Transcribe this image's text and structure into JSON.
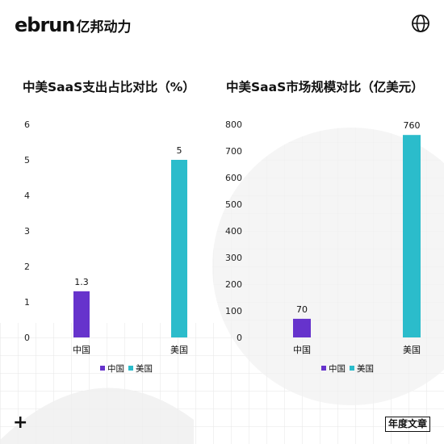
{
  "brand": {
    "logo_en": "ebrun",
    "logo_cn": "亿邦动力"
  },
  "footer": {
    "plus_symbol": "+",
    "tag_label": "年度文章"
  },
  "colors": {
    "china": "#6633CC",
    "usa": "#2BBCCB"
  },
  "chart_data": [
    {
      "type": "bar",
      "title": "中美SaaS支出占比对比（%）",
      "categories": [
        "中国",
        "美国"
      ],
      "values": [
        1.3,
        5
      ],
      "data_labels": [
        "1.3",
        "5"
      ],
      "legend": [
        "中国",
        "美国"
      ],
      "legend_position": "bottom",
      "ylim": [
        0,
        6
      ],
      "yticks": [
        0,
        1,
        2,
        3,
        4,
        5,
        6
      ],
      "grid": false
    },
    {
      "type": "bar",
      "title": "中美SaaS市场规模对比（亿美元）",
      "categories": [
        "中国",
        "美国"
      ],
      "values": [
        70,
        760
      ],
      "data_labels": [
        "70",
        "760"
      ],
      "legend": [
        "中国",
        "美国"
      ],
      "legend_position": "bottom",
      "ylim": [
        0,
        800
      ],
      "yticks": [
        0,
        100,
        200,
        300,
        400,
        500,
        600,
        700,
        800
      ],
      "grid": false
    }
  ]
}
